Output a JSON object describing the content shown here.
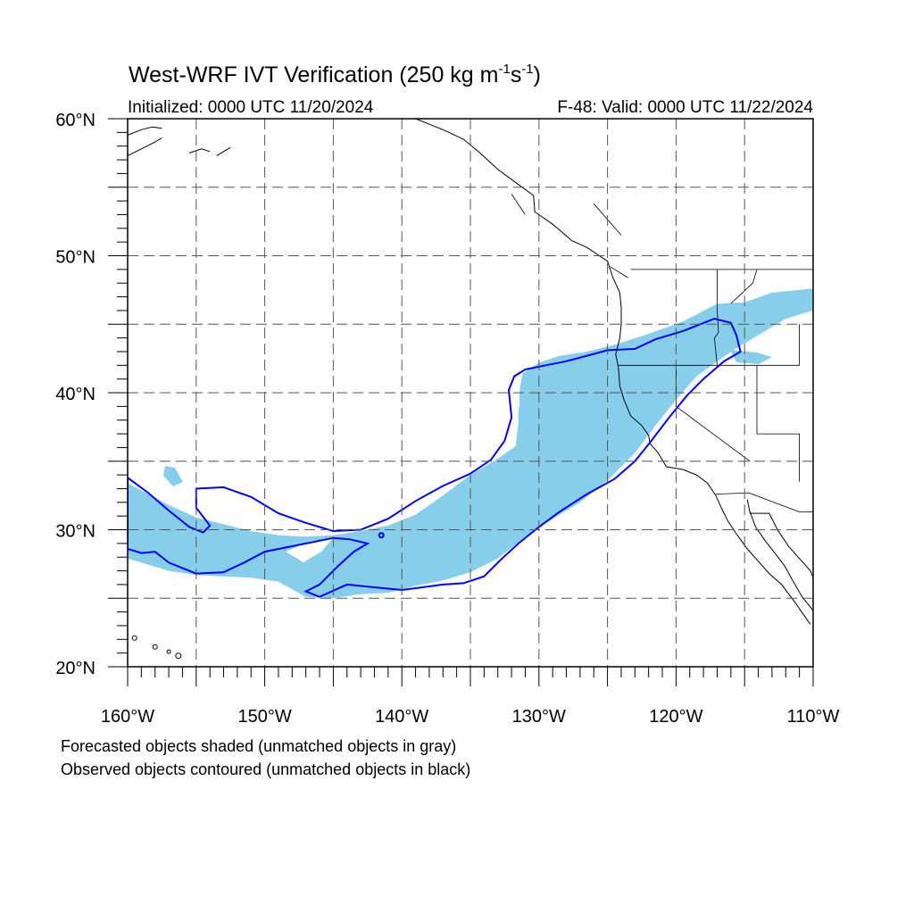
{
  "title": {
    "main": "West-WRF IVT Verification (250 kg m",
    "sup1": "-1",
    "mid": "s",
    "sup2": "-1",
    "end": ")"
  },
  "initialized": "Initialized: 0000 UTC 11/20/2024",
  "valid": "F-48: Valid: 0000 UTC 11/22/2024",
  "notes": [
    "Forecasted objects shaded (unmatched objects in gray)",
    "Observed objects contoured (unmatched objects in black)"
  ],
  "map": {
    "lon_range": [
      -160,
      -110
    ],
    "lat_range": [
      20,
      60
    ],
    "grid": true,
    "grid_spacing_deg": 5,
    "forecast_fill_color": "#87ceeb",
    "observed_contour_color": "#0000ff",
    "coastline_color": "#000000"
  },
  "lon_labels": [
    {
      "lon": -160,
      "text": "160°W"
    },
    {
      "lon": -150,
      "text": "150°W"
    },
    {
      "lon": -140,
      "text": "140°W"
    },
    {
      "lon": -130,
      "text": "130°W"
    },
    {
      "lon": -120,
      "text": "120°W"
    },
    {
      "lon": -110,
      "text": "110°W"
    }
  ],
  "lat_labels": [
    {
      "lat": 60,
      "text": "60°N"
    },
    {
      "lat": 50,
      "text": "50°N"
    },
    {
      "lat": 40,
      "text": "40°N"
    },
    {
      "lat": 30,
      "text": "30°N"
    },
    {
      "lat": 20,
      "text": "20°N"
    }
  ],
  "forecast_objects": [
    {
      "name": "main-ivt-object",
      "points": [
        [
          -160,
          33.4
        ],
        [
          -158.5,
          32.6
        ],
        [
          -157,
          31.8
        ],
        [
          -155,
          30.9
        ],
        [
          -153,
          30.4
        ],
        [
          -151,
          29.9
        ],
        [
          -149,
          29.6
        ],
        [
          -147,
          29.5
        ],
        [
          -145,
          29.6
        ],
        [
          -143,
          29.9
        ],
        [
          -141,
          30.3
        ],
        [
          -139,
          31.1
        ],
        [
          -137,
          32.5
        ],
        [
          -135,
          34.0
        ],
        [
          -133,
          35.2
        ],
        [
          -131.7,
          36.1
        ],
        [
          -131.5,
          37.8
        ],
        [
          -131.5,
          39.7
        ],
        [
          -131.2,
          41.4
        ],
        [
          -130,
          42.2
        ],
        [
          -128.5,
          42.7
        ],
        [
          -126.5,
          43.0
        ],
        [
          -124.5,
          43.5
        ],
        [
          -122,
          44.3
        ],
        [
          -119.5,
          45.2
        ],
        [
          -117,
          46.5
        ],
        [
          -115,
          46.6
        ],
        [
          -113,
          47.3
        ],
        [
          -110,
          47.6
        ],
        [
          -110,
          46.0
        ],
        [
          -112,
          45.4
        ],
        [
          -113.5,
          44.5
        ],
        [
          -115.5,
          43.3
        ],
        [
          -117,
          42.3
        ],
        [
          -118.5,
          41.2
        ],
        [
          -120,
          39.5
        ],
        [
          -121.5,
          37.6
        ],
        [
          -123,
          35.6
        ],
        [
          -125,
          33.6
        ],
        [
          -127,
          32.0
        ],
        [
          -129,
          30.8
        ],
        [
          -131,
          29.5
        ],
        [
          -133,
          27.9
        ],
        [
          -135,
          26.9
        ],
        [
          -137,
          26.3
        ],
        [
          -139,
          25.9
        ],
        [
          -141,
          25.4
        ],
        [
          -143,
          25.3
        ],
        [
          -145,
          25.0
        ],
        [
          -147,
          25.1
        ],
        [
          -149,
          26.2
        ],
        [
          -151,
          26.5
        ],
        [
          -153,
          26.6
        ],
        [
          -155,
          26.7
        ],
        [
          -157,
          27.0
        ],
        [
          -159,
          27.6
        ],
        [
          -160,
          27.9
        ]
      ],
      "fill": "#87ceeb"
    }
  ],
  "observed_objects": [
    {
      "name": "observed-ivt-contour",
      "points": [
        [
          -160,
          33.8
        ],
        [
          -158.5,
          32.7
        ],
        [
          -157,
          31.4
        ],
        [
          -155.5,
          30.2
        ],
        [
          -154.5,
          29.8
        ],
        [
          -154,
          30.3
        ],
        [
          -155,
          31.6
        ],
        [
          -155,
          33.0
        ],
        [
          -153,
          33.1
        ],
        [
          -151,
          32.4
        ],
        [
          -149,
          31.2
        ],
        [
          -147,
          30.5
        ],
        [
          -145,
          29.9
        ],
        [
          -143,
          30.0
        ],
        [
          -141,
          30.8
        ],
        [
          -139,
          32.1
        ],
        [
          -137,
          33.2
        ],
        [
          -135,
          34.1
        ],
        [
          -133.5,
          35.1
        ],
        [
          -132.5,
          36.5
        ],
        [
          -132,
          38.2
        ],
        [
          -132.2,
          40.2
        ],
        [
          -131.8,
          41.2
        ],
        [
          -131,
          41.7
        ],
        [
          -129.5,
          42.0
        ],
        [
          -128,
          42.3
        ],
        [
          -126.5,
          42.7
        ],
        [
          -125,
          43.1
        ],
        [
          -123,
          43.2
        ],
        [
          -121.5,
          43.9
        ],
        [
          -119.5,
          44.5
        ],
        [
          -117.2,
          45.4
        ],
        [
          -116,
          45.1
        ],
        [
          -115.6,
          44.2
        ],
        [
          -115.3,
          43.0
        ],
        [
          -116.5,
          42.3
        ],
        [
          -118,
          41.0
        ],
        [
          -119.2,
          39.8
        ],
        [
          -120.5,
          38.2
        ],
        [
          -121.8,
          36.5
        ],
        [
          -123,
          35.0
        ],
        [
          -124.5,
          33.7
        ],
        [
          -126.5,
          32.6
        ],
        [
          -128.5,
          31.3
        ],
        [
          -130,
          30.2
        ],
        [
          -131.5,
          29.0
        ],
        [
          -132.8,
          27.8
        ],
        [
          -134,
          26.6
        ],
        [
          -135.5,
          26.1
        ],
        [
          -137,
          26.0
        ],
        [
          -138.5,
          25.8
        ],
        [
          -140,
          25.6
        ],
        [
          -142,
          25.8
        ],
        [
          -144,
          26.0
        ],
        [
          -146,
          25.1
        ],
        [
          -147,
          25.5
        ],
        [
          -146,
          26.0
        ],
        [
          -144.7,
          27.3
        ],
        [
          -143.5,
          28.4
        ],
        [
          -142.5,
          29.0
        ],
        [
          -143.8,
          29.3
        ],
        [
          -145,
          29.4
        ],
        [
          -147,
          29.0
        ],
        [
          -150,
          28.4
        ],
        [
          -151.5,
          27.6
        ],
        [
          -153,
          26.9
        ],
        [
          -155,
          26.8
        ],
        [
          -157,
          27.6
        ],
        [
          -158,
          28.4
        ],
        [
          -159,
          28.3
        ],
        [
          -160,
          28.6
        ]
      ]
    }
  ]
}
